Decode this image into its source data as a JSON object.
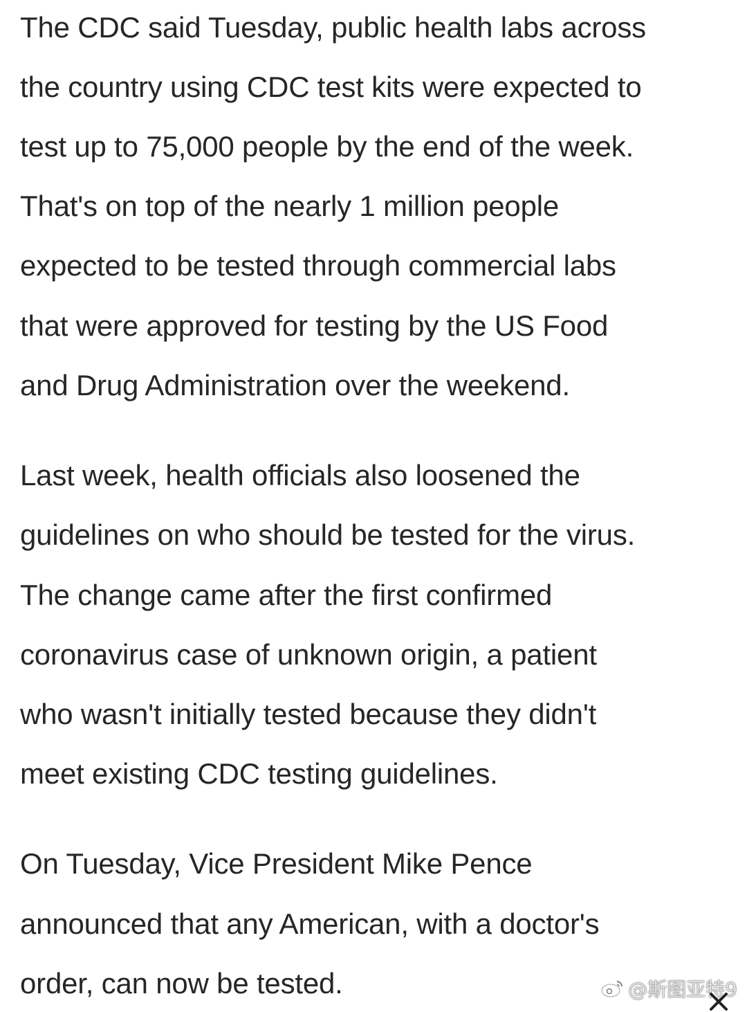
{
  "article": {
    "paragraphs": [
      {
        "lines": [
          "The CDC said Tuesday, public health labs across",
          "the country using CDC test kits were expected to",
          "test up to 75,000 people by the end of the week.",
          "That's on top of the nearly 1 million people",
          "expected to be tested through commercial labs",
          "that were approved for testing by the US Food",
          "and Drug Administration over the weekend."
        ]
      },
      {
        "lines": [
          "Last week, health officials also loosened the",
          "guidelines on who should be tested for the virus.",
          "The change came after the first confirmed",
          "coronavirus case of unknown origin, a patient",
          "who wasn't initially tested because they didn't",
          "meet existing CDC testing guidelines."
        ]
      },
      {
        "lines": [
          "On Tuesday, Vice President Mike Pence",
          "announced that any American, with a doctor's",
          "order, can now be tested."
        ]
      }
    ]
  },
  "watermark": {
    "text": "@斯图亚特9",
    "icon": "weibo-logo-icon"
  },
  "overlay": {
    "icon": "close-icon"
  }
}
